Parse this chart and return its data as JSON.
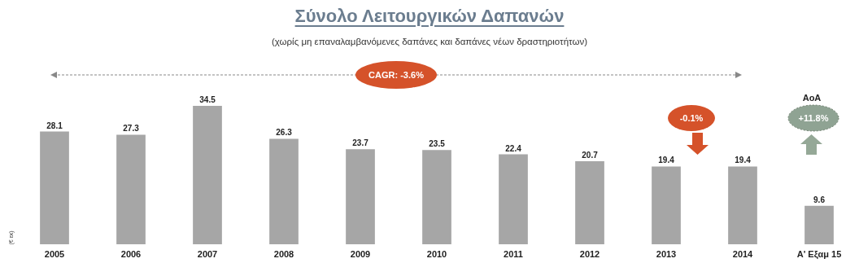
{
  "chart_data": {
    "type": "bar",
    "title": "Σύνολο Λειτουργικών Δαπανών",
    "subtitle": "(χωρίς μη επαναλαμβανόμενες δαπάνες και δαπάνες νέων δραστηριοτήτων)",
    "ylabel": "(€ εκ)",
    "categories": [
      "2005",
      "2006",
      "2007",
      "2008",
      "2009",
      "2010",
      "2011",
      "2012",
      "2013",
      "2014",
      "Α' Εξαμ 15"
    ],
    "values": [
      28.1,
      27.3,
      34.5,
      26.3,
      23.7,
      23.5,
      22.4,
      20.7,
      19.4,
      19.4,
      9.6
    ],
    "color": "#a6a6a6",
    "data_labels": true,
    "grid": false,
    "annotations": [
      "CAGR:  -3.6%",
      "-0.1%",
      "AoA",
      "+11.8%"
    ]
  }
}
